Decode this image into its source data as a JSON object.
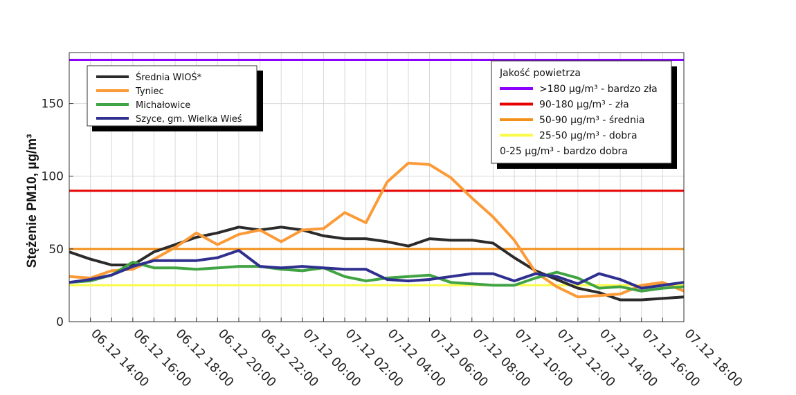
{
  "chart_data": {
    "type": "line",
    "ylabel": "Stężenie PM10, µg/m³",
    "ylim": [
      0,
      185
    ],
    "yticks": [
      0,
      50,
      100,
      150
    ],
    "x": [
      "13:00",
      "14:00",
      "15:00",
      "16:00",
      "17:00",
      "18:00",
      "19:00",
      "20:00",
      "21:00",
      "22:00",
      "23:00",
      "00:00",
      "01:00",
      "02:00",
      "03:00",
      "04:00",
      "05:00",
      "06:00",
      "07:00",
      "08:00",
      "09:00",
      "10:00",
      "11:00",
      "12:00",
      "13:00",
      "14:00",
      "15:00",
      "16:00",
      "17:00",
      "18:00"
    ],
    "xticks": [
      "06.12 14:00",
      "06.12 16:00",
      "06.12 18:00",
      "06.12 20:00",
      "06.12 22:00",
      "07.12 00:00",
      "07.12 02:00",
      "07.12 04:00",
      "07.12 06:00",
      "07.12 08:00",
      "07.12 10:00",
      "07.12 12:00",
      "07.12 14:00",
      "07.12 16:00",
      "07.12 18:00"
    ],
    "grid": true,
    "series": [
      {
        "name": "Średnia WIOŚ*",
        "color": "#2b2b2b",
        "values": [
          48,
          43,
          39,
          39,
          48,
          53,
          58,
          61,
          65,
          63,
          65,
          63,
          59,
          57,
          57,
          55,
          52,
          57,
          56,
          56,
          54,
          44,
          35,
          29,
          23,
          20,
          15,
          15,
          16,
          17
        ]
      },
      {
        "name": "Tyniec",
        "color": "#fb9a37",
        "values": [
          31,
          30,
          35,
          36,
          43,
          51,
          61,
          53,
          60,
          63,
          55,
          63,
          64,
          75,
          68,
          96,
          109,
          108,
          99,
          85,
          72,
          56,
          34,
          24,
          17,
          18,
          19,
          25,
          27,
          21
        ]
      },
      {
        "name": "Michałowice",
        "color": "#41a444",
        "values": [
          27,
          28,
          32,
          41,
          37,
          37,
          36,
          37,
          38,
          38,
          36,
          35,
          37,
          31,
          28,
          30,
          31,
          32,
          27,
          26,
          25,
          25,
          30,
          34,
          30,
          23,
          24,
          21,
          23,
          24
        ]
      },
      {
        "name": "Szyce, gm. Wielka Wieś",
        "color": "#2f2f8f",
        "values": [
          27,
          29,
          32,
          38,
          42,
          42,
          42,
          44,
          49,
          38,
          37,
          38,
          37,
          36,
          36,
          29,
          28,
          29,
          31,
          33,
          33,
          28,
          33,
          31,
          26,
          33,
          29,
          23,
          25,
          27
        ]
      }
    ],
    "thresholds": [
      {
        "value": 180,
        "color": "#8b00ff"
      },
      {
        "value": 90,
        "color": "#e60000"
      },
      {
        "value": 50,
        "color": "#f39019"
      },
      {
        "value": 25,
        "color": "#fafa4a"
      }
    ],
    "quality_legend": {
      "title": "Jakość powietrza",
      "items": [
        {
          "label": ">180 µg/m³ - bardzo zła",
          "color": "#8b00ff"
        },
        {
          "label": "90-180 µg/m³ - zła",
          "color": "#e60000"
        },
        {
          "label": "50-90 µg/m³ - średnia",
          "color": "#f39019"
        },
        {
          "label": "25-50 µg/m³ - dobra",
          "color": "#fafa4a"
        },
        {
          "label": "0-25 µg/m³ - bardzo dobra",
          "color": ""
        }
      ]
    }
  }
}
